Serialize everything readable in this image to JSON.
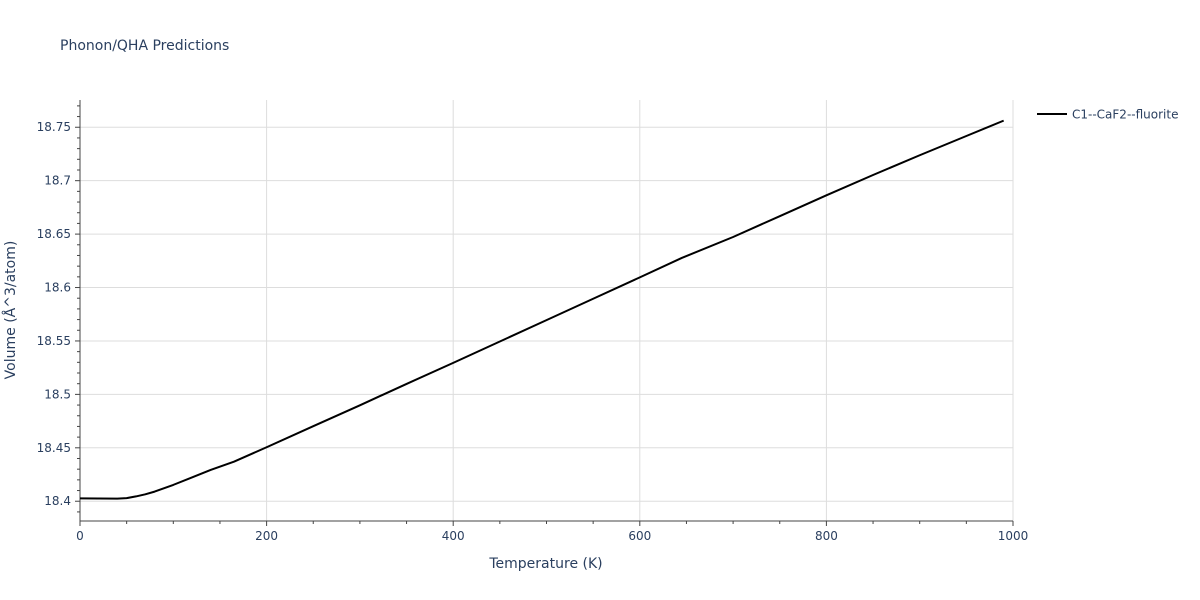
{
  "chart_data": {
    "type": "line",
    "title": "Phonon/QHA Predictions",
    "xlabel": "Temperature (K)",
    "ylabel": "Volume (Å^3/atom)",
    "xlim": [
      0,
      1000
    ],
    "ylim": [
      18.3815,
      18.7755
    ],
    "x_ticks": [
      0,
      200,
      400,
      600,
      800,
      1000
    ],
    "y_ticks": [
      18.4,
      18.45,
      18.5,
      18.55,
      18.6,
      18.65,
      18.7,
      18.75
    ],
    "y_tick_labels": [
      "18.4",
      "18.45",
      "18.5",
      "18.55",
      "18.6",
      "18.65",
      "18.7",
      "18.75"
    ],
    "grid": true,
    "legend_position": "top-right",
    "series": [
      {
        "name": "C1--CaF2--fluorite",
        "color": "#000000",
        "x": [
          0,
          20,
          40,
          50,
          60,
          70,
          80,
          100,
          120,
          140,
          165,
          200,
          250,
          300,
          350,
          400,
          450,
          500,
          550,
          600,
          645,
          700,
          750,
          800,
          850,
          900,
          950,
          990
        ],
        "y": [
          18.4027,
          18.4026,
          18.4024,
          18.4029,
          18.4045,
          18.4065,
          18.409,
          18.4153,
          18.4223,
          18.4293,
          18.437,
          18.4505,
          18.4702,
          18.4898,
          18.5098,
          18.5295,
          18.5495,
          18.5695,
          18.5895,
          18.6095,
          18.6277,
          18.6473,
          18.6668,
          18.6863,
          18.7053,
          18.7238,
          18.7418,
          18.7562
        ]
      }
    ]
  }
}
